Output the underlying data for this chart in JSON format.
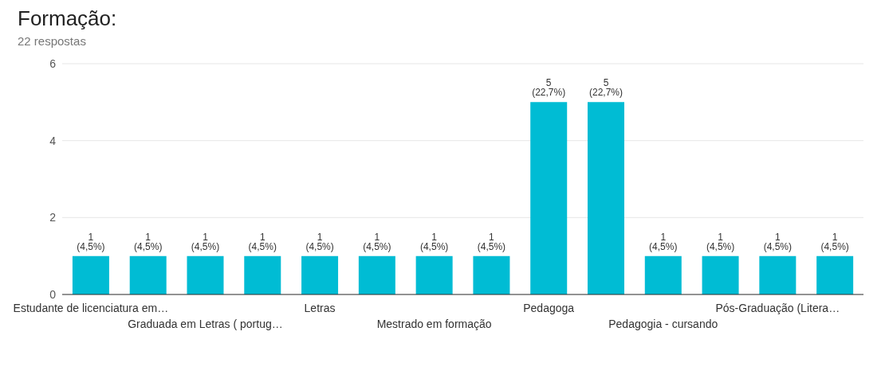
{
  "chart_data": {
    "type": "bar",
    "title": "Formação:",
    "subtitle": "22 respostas",
    "categories": [
      "Estudante de licenciatura em…",
      null,
      "Graduada em Letras ( portug…",
      null,
      "Letras",
      null,
      "Mestrado em formação",
      null,
      "Pedagoga",
      null,
      "Pedagogia - cursando",
      null,
      "Pós-Graduação (Litera…",
      null
    ],
    "values": [
      1,
      1,
      1,
      1,
      1,
      1,
      1,
      1,
      5,
      5,
      1,
      1,
      1,
      1
    ],
    "value_labels": [
      "1 (4,5%)",
      "1 (4,5%)",
      "1 (4,5%)",
      "1 (4,5%)",
      "1 (4,5%)",
      "1 (4,5%)",
      "1 (4,5%)",
      "1 (4,5%)",
      "5 (22,7%)",
      "5 (22,7%)",
      "1 (4,5%)",
      "1 (4,5%)",
      "1 (4,5%)",
      "1 (4,5%)"
    ],
    "color": "#00bcd4",
    "ylim": [
      0,
      6
    ],
    "yticks": [
      0,
      2,
      4,
      6
    ],
    "grid": "y"
  }
}
